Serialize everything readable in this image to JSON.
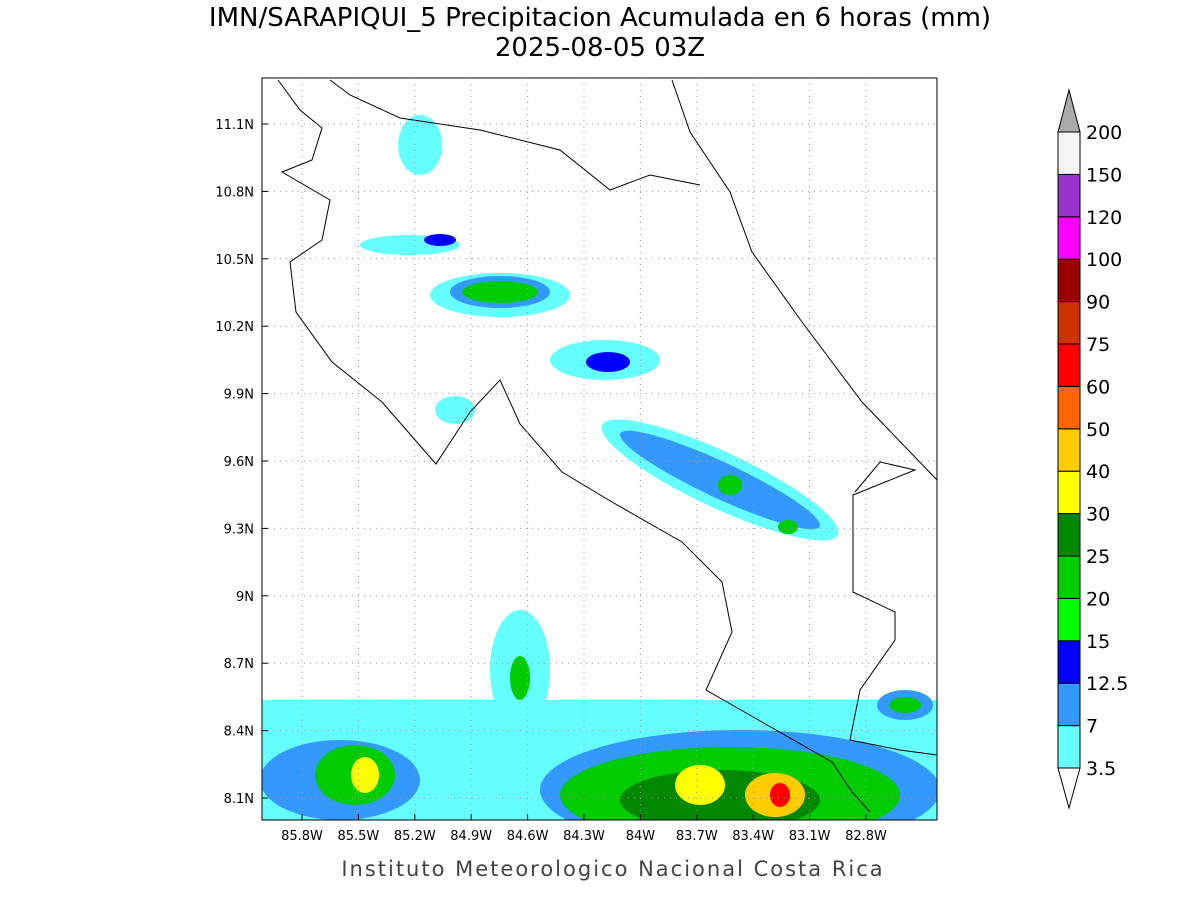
{
  "header": {
    "title": "IMN/SARAPIQUI_5 Precipitacion Acumulada en 6 horas (mm)",
    "subtitle": "2025-08-05 03Z"
  },
  "map": {
    "lat_labels": [
      "11.1N",
      "10.8N",
      "10.5N",
      "10.2N",
      "9.9N",
      "9.6N",
      "9.3N",
      "9N",
      "8.7N",
      "8.4N",
      "8.1N"
    ],
    "lon_labels": [
      "85.8W",
      "85.5W",
      "85.2W",
      "84.9W",
      "84.6W",
      "84.3W",
      "84W",
      "83.7W",
      "83.4W",
      "83.1W",
      "82.8W"
    ]
  },
  "colorbar": {
    "labels": [
      3.5,
      7,
      12.5,
      15,
      20,
      25,
      30,
      40,
      50,
      60,
      75,
      90,
      100,
      120,
      150,
      200
    ],
    "colors": [
      "#66ffff",
      "#3399ff",
      "#0000ff",
      "#00ff00",
      "#00cc00",
      "#008800",
      "#ffff00",
      "#ffcc00",
      "#ff6600",
      "#ff0000",
      "#cc3300",
      "#990000",
      "#ff00ff",
      "#9933cc",
      "#f5f5f5"
    ]
  },
  "footer": "Instituto Meteorologico Nacional Costa Rica"
}
